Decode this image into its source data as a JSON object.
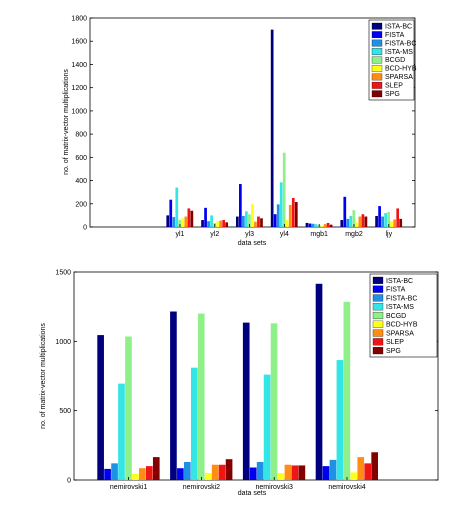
{
  "colors": [
    "#00007f",
    "#0000f0",
    "#1e90e6",
    "#33e5e5",
    "#8ff08a",
    "#ffff1a",
    "#ff8c14",
    "#f01414",
    "#820000"
  ],
  "chart_data": [
    {
      "type": "bar",
      "ylabel": "no. of matrix-vector multiplications",
      "xlabel": "data sets",
      "ylim": [
        0,
        1800
      ],
      "yticks": [
        0,
        200,
        400,
        600,
        800,
        1000,
        1200,
        1400,
        1600,
        1800
      ],
      "legend": "top-right",
      "categories": [
        "yl1",
        "yl2",
        "yl3",
        "yl4",
        "mgb1",
        "mgb2",
        "ljy"
      ],
      "series": [
        {
          "name": "ISTA-BC",
          "values": [
            100,
            60,
            90,
            1700,
            35,
            60,
            95
          ]
        },
        {
          "name": "FISTA",
          "values": [
            235,
            165,
            370,
            110,
            30,
            260,
            180
          ]
        },
        {
          "name": "FISTA-BC",
          "values": [
            85,
            50,
            95,
            195,
            28,
            70,
            90
          ]
        },
        {
          "name": "ISTA-MS",
          "values": [
            340,
            100,
            135,
            385,
            25,
            95,
            120
          ]
        },
        {
          "name": "BCGD",
          "values": [
            60,
            35,
            110,
            640,
            15,
            145,
            130
          ]
        },
        {
          "name": "BCD-HYB",
          "values": [
            75,
            50,
            200,
            60,
            10,
            40,
            50
          ]
        },
        {
          "name": "SPARSA",
          "values": [
            90,
            55,
            45,
            190,
            25,
            90,
            65
          ]
        },
        {
          "name": "SLEP",
          "values": [
            160,
            60,
            90,
            250,
            35,
            110,
            160
          ]
        },
        {
          "name": "SPG",
          "values": [
            140,
            40,
            75,
            215,
            20,
            90,
            70
          ]
        }
      ]
    },
    {
      "type": "bar",
      "ylabel": "no. of matrix-vector multiplications",
      "xlabel": "data sets",
      "ylim": [
        0,
        1500
      ],
      "yticks": [
        0,
        500,
        1000,
        1500
      ],
      "legend": "top-right",
      "categories": [
        "nemirovski1",
        "nemirovski2",
        "nemirovski3",
        "nemirovski4"
      ],
      "series": [
        {
          "name": "ISTA-BC",
          "values": [
            1045,
            1215,
            1135,
            1415
          ]
        },
        {
          "name": "FISTA",
          "values": [
            80,
            85,
            90,
            100
          ]
        },
        {
          "name": "FISTA-BC",
          "values": [
            120,
            130,
            130,
            145
          ]
        },
        {
          "name": "ISTA-MS",
          "values": [
            695,
            810,
            760,
            865
          ]
        },
        {
          "name": "BCGD",
          "values": [
            1035,
            1200,
            1130,
            1285
          ]
        },
        {
          "name": "BCD-HYB",
          "values": [
            45,
            50,
            50,
            55
          ]
        },
        {
          "name": "SPARSA",
          "values": [
            85,
            110,
            110,
            165
          ]
        },
        {
          "name": "SLEP",
          "values": [
            100,
            110,
            105,
            120
          ]
        },
        {
          "name": "SPG",
          "values": [
            165,
            150,
            105,
            200
          ]
        }
      ]
    }
  ]
}
